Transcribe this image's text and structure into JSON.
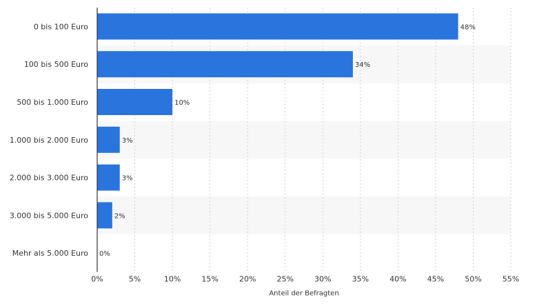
{
  "chart_data": {
    "type": "bar",
    "orientation": "horizontal",
    "categories": [
      "0 bis 100 Euro",
      "100 bis 500 Euro",
      "500 bis 1.000 Euro",
      "1.000 bis 2.000 Euro",
      "2.000 bis 3.000 Euro",
      "3.000 bis 5.000 Euro",
      "Mehr als 5.000 Euro"
    ],
    "values": [
      48,
      34,
      10,
      3,
      3,
      2,
      0
    ],
    "data_labels": [
      "48%",
      "34%",
      "10%",
      "3%",
      "3%",
      "2%",
      "0%"
    ],
    "xlabel": "Anteil der Befragten",
    "ylabel": "",
    "xlim": [
      0,
      55
    ],
    "ticks": [
      0,
      5,
      10,
      15,
      20,
      25,
      30,
      35,
      40,
      45,
      50,
      55
    ],
    "tick_labels": [
      "0%",
      "5%",
      "10%",
      "15%",
      "20%",
      "25%",
      "30%",
      "35%",
      "40%",
      "45%",
      "50%",
      "55%"
    ],
    "bar_color": "#2a74de",
    "grid": true
  }
}
